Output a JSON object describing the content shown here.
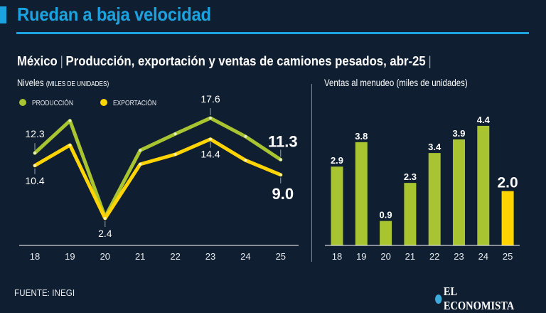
{
  "header": {
    "title": "Ruedan a baja velocidad"
  },
  "subtitle": {
    "country": "México",
    "separator": "|",
    "text": "Producción, exportación y ventas de camiones pesados, abr-25"
  },
  "footer": {
    "source": "FUENTE: INEGI",
    "logo_text": "EL ECONOMISTA"
  },
  "colors": {
    "background": "#0f1e30",
    "accent": "#1aa3e0",
    "produccion": "#a8c430",
    "exportacion": "#ffd400"
  },
  "chart_data": [
    {
      "type": "line",
      "title": "Niveles",
      "title_note": "(MILES DE UNIDADES)",
      "categories": [
        "18",
        "19",
        "20",
        "21",
        "22",
        "23",
        "24",
        "25"
      ],
      "series": [
        {
          "name": "PRODUCCIÓN",
          "color": "#a8c430",
          "values": [
            12.3,
            17.2,
            2.6,
            12.7,
            15.2,
            17.6,
            14.8,
            11.3
          ],
          "labels": [
            "12.3",
            null,
            null,
            null,
            null,
            "17.6",
            null,
            "11.3"
          ]
        },
        {
          "name": "EXPORTACIÓN",
          "color": "#ffd400",
          "values": [
            10.4,
            13.5,
            2.4,
            10.6,
            12.1,
            14.4,
            11.2,
            9.0
          ],
          "labels": [
            "10.4",
            null,
            "2.4",
            null,
            null,
            "14.4",
            null,
            "9.0"
          ]
        }
      ],
      "ylim": [
        0,
        20
      ],
      "legend": "top-left",
      "grid": false
    },
    {
      "type": "bar",
      "title": "Ventas al menudeo (miles de unidades)",
      "categories": [
        "18",
        "19",
        "20",
        "21",
        "22",
        "23",
        "24",
        "25"
      ],
      "values": [
        2.9,
        3.8,
        0.9,
        2.3,
        3.4,
        3.9,
        4.4,
        2.0
      ],
      "labels": [
        "2.9",
        "3.8",
        "0.9",
        "2.3",
        "3.4",
        "3.9",
        "4.4",
        "2.0"
      ],
      "colors": [
        "#a8c430",
        "#a8c430",
        "#a8c430",
        "#a8c430",
        "#a8c430",
        "#a8c430",
        "#a8c430",
        "#ffd400"
      ],
      "ylim": [
        0,
        4.4
      ]
    }
  ]
}
